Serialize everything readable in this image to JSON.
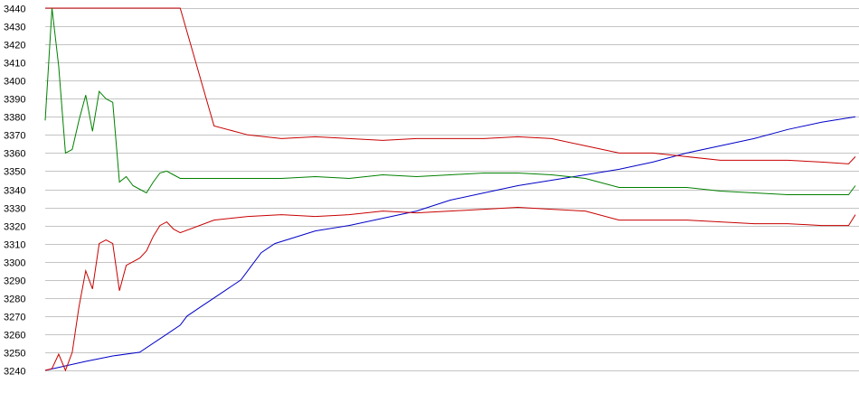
{
  "chart_data": {
    "type": "line",
    "title": "",
    "xlabel": "",
    "ylabel": "",
    "ylim": [
      3240,
      3440
    ],
    "y_tick_step": 10,
    "y_ticks": [
      "3440",
      "3430",
      "3420",
      "3410",
      "3400",
      "3390",
      "3380",
      "3370",
      "3360",
      "3350",
      "3340",
      "3330",
      "3320",
      "3310",
      "3300",
      "3290",
      "3280",
      "3270",
      "3260",
      "3250",
      "3240"
    ],
    "grid": true,
    "legend": "none",
    "x_count": 121,
    "series": [
      {
        "color": "#0000c8",
        "x": [
          0,
          6,
          10,
          14,
          18,
          20,
          21,
          23,
          25,
          27,
          29,
          30,
          32,
          34,
          40,
          45,
          50,
          55,
          60,
          65,
          70,
          75,
          80,
          85,
          90,
          95,
          100,
          105,
          110,
          115,
          120
        ],
        "values": [
          3240,
          3245,
          3248,
          3250,
          3260,
          3265,
          3270,
          3275,
          3280,
          3285,
          3290,
          3295,
          3305,
          3310,
          3317,
          3320,
          3324,
          3328,
          3334,
          3338,
          3342,
          3345,
          3348,
          3351,
          3355,
          3360,
          3364,
          3368,
          3373,
          3377,
          3380
        ]
      },
      {
        "color": "#c80000",
        "x": [
          0,
          1,
          2,
          3,
          4,
          5,
          6,
          7,
          8,
          9,
          10,
          11,
          12,
          13,
          14,
          15,
          16,
          17,
          18,
          19,
          20,
          25,
          30,
          35,
          40,
          45,
          50,
          55,
          60,
          65,
          70,
          75,
          80,
          85,
          90,
          95,
          100,
          105,
          110,
          115,
          119,
          120
        ],
        "values": [
          3440,
          3440,
          3440,
          3440,
          3440,
          3440,
          3440,
          3440,
          3440,
          3440,
          3440,
          3440,
          3440,
          3440,
          3440,
          3440,
          3440,
          3440,
          3440,
          3440,
          3440,
          3375,
          3370,
          3368,
          3369,
          3368,
          3367,
          3368,
          3368,
          3368,
          3369,
          3368,
          3364,
          3360,
          3360,
          3358,
          3356,
          3356,
          3356,
          3355,
          3354,
          3358
        ]
      },
      {
        "color": "#008000",
        "x": [
          0,
          1,
          2,
          3,
          4,
          5,
          6,
          7,
          8,
          9,
          10,
          11,
          12,
          13,
          14,
          15,
          16,
          17,
          18,
          19,
          20,
          25,
          30,
          35,
          40,
          45,
          50,
          55,
          60,
          65,
          70,
          75,
          80,
          85,
          90,
          95,
          100,
          105,
          110,
          115,
          119,
          120
        ],
        "values": [
          3378,
          3440,
          3408,
          3360,
          3362,
          3378,
          3392,
          3372,
          3394,
          3390,
          3388,
          3344,
          3347,
          3342,
          3340,
          3338,
          3344,
          3349,
          3350,
          3348,
          3346,
          3346,
          3346,
          3346,
          3347,
          3346,
          3348,
          3347,
          3348,
          3349,
          3349,
          3348,
          3346,
          3341,
          3341,
          3341,
          3339,
          3338,
          3337,
          3337,
          3337,
          3342
        ]
      },
      {
        "color": "#c80000",
        "x": [
          0,
          1,
          2,
          3,
          4,
          5,
          6,
          7,
          8,
          9,
          10,
          11,
          12,
          13,
          14,
          15,
          16,
          17,
          18,
          19,
          20,
          25,
          30,
          35,
          40,
          45,
          50,
          55,
          60,
          65,
          70,
          75,
          80,
          85,
          90,
          95,
          100,
          105,
          110,
          115,
          119,
          120
        ],
        "values": [
          3240,
          3241,
          3249,
          3240,
          3250,
          3275,
          3295,
          3285,
          3310,
          3312,
          3310,
          3284,
          3298,
          3300,
          3302,
          3306,
          3314,
          3320,
          3322,
          3318,
          3316,
          3323,
          3325,
          3326,
          3325,
          3326,
          3328,
          3327,
          3328,
          3329,
          3330,
          3329,
          3328,
          3323,
          3323,
          3323,
          3322,
          3321,
          3321,
          3320,
          3320,
          3326
        ]
      }
    ]
  }
}
